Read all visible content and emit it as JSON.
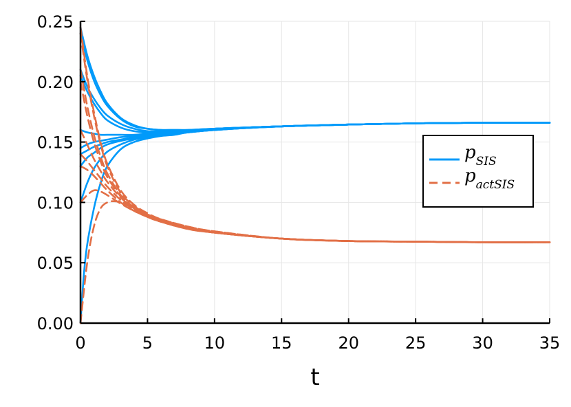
{
  "chart_data": {
    "type": "line",
    "title": "",
    "xlabel": "t",
    "ylabel": "",
    "xlim": [
      0,
      35
    ],
    "ylim": [
      0,
      0.25
    ],
    "grid": true,
    "legend_position": "right",
    "x_ticks": [
      "0",
      "5",
      "10",
      "15",
      "20",
      "25",
      "30",
      "35"
    ],
    "y_ticks": [
      "0.00",
      "0.05",
      "0.10",
      "0.15",
      "0.20",
      "0.25"
    ],
    "colors": {
      "sis": "#009AFA",
      "actsis": "#E26F46"
    },
    "legend": [
      {
        "main": "p",
        "sub": "SIS",
        "style": "solid",
        "color": "#009AFA"
      },
      {
        "main": "p",
        "sub": "actSIS",
        "style": "dashed",
        "color": "#E26F46"
      }
    ],
    "series": [
      {
        "group": "sis",
        "x": [
          0,
          0.5,
          1,
          1.5,
          2,
          3,
          4,
          5,
          6,
          7,
          8,
          10,
          15,
          20,
          25,
          30,
          35
        ],
        "values": [
          0.245,
          0.222,
          0.205,
          0.192,
          0.182,
          0.17,
          0.164,
          0.161,
          0.16,
          0.16,
          0.16,
          0.161,
          0.163,
          0.1645,
          0.1655,
          0.166,
          0.166
        ]
      },
      {
        "group": "sis",
        "x": [
          0,
          0.5,
          1,
          1.5,
          2,
          3,
          4,
          5,
          6,
          7,
          8,
          10,
          15,
          20,
          25,
          30,
          35
        ],
        "values": [
          0.24,
          0.218,
          0.201,
          0.189,
          0.18,
          0.169,
          0.163,
          0.161,
          0.16,
          0.16,
          0.16,
          0.161,
          0.163,
          0.1645,
          0.1655,
          0.166,
          0.166
        ]
      },
      {
        "group": "sis",
        "x": [
          0,
          0.5,
          1,
          1.5,
          2,
          3,
          4,
          5,
          6,
          7,
          8,
          10,
          15,
          20,
          25,
          30,
          35
        ],
        "values": [
          0.21,
          0.196,
          0.186,
          0.178,
          0.172,
          0.165,
          0.161,
          0.159,
          0.159,
          0.159,
          0.159,
          0.161,
          0.163,
          0.1645,
          0.1655,
          0.166,
          0.166
        ]
      },
      {
        "group": "sis",
        "x": [
          0,
          0.5,
          1,
          1.5,
          2,
          3,
          4,
          5,
          6,
          7,
          8,
          10,
          15,
          20,
          25,
          30,
          35
        ],
        "values": [
          0.205,
          0.192,
          0.182,
          0.174,
          0.168,
          0.162,
          0.159,
          0.158,
          0.158,
          0.158,
          0.159,
          0.161,
          0.163,
          0.1645,
          0.1655,
          0.166,
          0.166
        ]
      },
      {
        "group": "sis",
        "x": [
          0,
          0.5,
          1,
          1.5,
          2,
          3,
          4,
          5,
          6,
          7,
          8,
          10,
          15,
          20,
          25,
          30,
          35
        ],
        "values": [
          0.16,
          0.158,
          0.157,
          0.156,
          0.156,
          0.156,
          0.156,
          0.157,
          0.157,
          0.158,
          0.159,
          0.161,
          0.163,
          0.1645,
          0.1655,
          0.166,
          0.166
        ]
      },
      {
        "group": "sis",
        "x": [
          0,
          0.5,
          1,
          1.5,
          2,
          3,
          4,
          5,
          6,
          7,
          8,
          10,
          15,
          20,
          25,
          30,
          35
        ],
        "values": [
          0.145,
          0.148,
          0.15,
          0.151,
          0.152,
          0.154,
          0.155,
          0.156,
          0.157,
          0.158,
          0.159,
          0.161,
          0.163,
          0.1645,
          0.1655,
          0.166,
          0.166
        ]
      },
      {
        "group": "sis",
        "x": [
          0,
          0.5,
          1,
          1.5,
          2,
          3,
          4,
          5,
          6,
          7,
          8,
          10,
          15,
          20,
          25,
          30,
          35
        ],
        "values": [
          0.14,
          0.143,
          0.146,
          0.148,
          0.15,
          0.152,
          0.154,
          0.156,
          0.157,
          0.158,
          0.159,
          0.161,
          0.163,
          0.1645,
          0.1655,
          0.166,
          0.166
        ]
      },
      {
        "group": "sis",
        "x": [
          0,
          0.5,
          1,
          1.5,
          2,
          3,
          4,
          5,
          6,
          7,
          8,
          10,
          15,
          20,
          25,
          30,
          35
        ],
        "values": [
          0.13,
          0.137,
          0.141,
          0.145,
          0.148,
          0.151,
          0.153,
          0.155,
          0.156,
          0.157,
          0.158,
          0.16,
          0.163,
          0.1645,
          0.1655,
          0.166,
          0.166
        ]
      },
      {
        "group": "sis",
        "x": [
          0,
          0.5,
          1,
          1.5,
          2,
          3,
          4,
          5,
          6,
          7,
          8,
          10,
          15,
          20,
          25,
          30,
          35
        ],
        "values": [
          0.1,
          0.116,
          0.128,
          0.136,
          0.142,
          0.148,
          0.152,
          0.154,
          0.156,
          0.157,
          0.158,
          0.16,
          0.163,
          0.1645,
          0.1655,
          0.166,
          0.166
        ]
      },
      {
        "group": "sis",
        "x": [
          0,
          0.25,
          0.5,
          1,
          1.5,
          2,
          3,
          4,
          5,
          6,
          7,
          8,
          10,
          15,
          20,
          25,
          30,
          35
        ],
        "values": [
          0.0,
          0.04,
          0.065,
          0.095,
          0.116,
          0.13,
          0.144,
          0.15,
          0.153,
          0.155,
          0.156,
          0.158,
          0.16,
          0.163,
          0.1645,
          0.1655,
          0.166,
          0.166
        ]
      },
      {
        "group": "actsis",
        "x": [
          0,
          0.5,
          1,
          1.5,
          2,
          3,
          4,
          5,
          6,
          8,
          10,
          15,
          20,
          25,
          30,
          35
        ],
        "values": [
          0.245,
          0.205,
          0.175,
          0.15,
          0.132,
          0.11,
          0.098,
          0.091,
          0.086,
          0.079,
          0.075,
          0.07,
          0.068,
          0.0675,
          0.067,
          0.067
        ]
      },
      {
        "group": "actsis",
        "x": [
          0,
          0.5,
          1,
          1.5,
          2,
          3,
          4,
          5,
          6,
          8,
          10,
          15,
          20,
          25,
          30,
          35
        ],
        "values": [
          0.24,
          0.202,
          0.172,
          0.148,
          0.13,
          0.108,
          0.097,
          0.09,
          0.085,
          0.079,
          0.075,
          0.07,
          0.068,
          0.0675,
          0.067,
          0.067
        ]
      },
      {
        "group": "actsis",
        "x": [
          0,
          0.5,
          1,
          1.5,
          2,
          3,
          4,
          5,
          6,
          8,
          10,
          15,
          20,
          25,
          30,
          35
        ],
        "values": [
          0.21,
          0.18,
          0.156,
          0.138,
          0.124,
          0.106,
          0.096,
          0.09,
          0.086,
          0.08,
          0.076,
          0.07,
          0.068,
          0.0675,
          0.067,
          0.067
        ]
      },
      {
        "group": "actsis",
        "x": [
          0,
          0.5,
          1,
          1.5,
          2,
          3,
          4,
          5,
          6,
          8,
          10,
          15,
          20,
          25,
          30,
          35
        ],
        "values": [
          0.2,
          0.172,
          0.15,
          0.134,
          0.121,
          0.105,
          0.095,
          0.089,
          0.085,
          0.079,
          0.075,
          0.07,
          0.068,
          0.0675,
          0.067,
          0.067
        ]
      },
      {
        "group": "actsis",
        "x": [
          0,
          0.5,
          1,
          1.5,
          2,
          3,
          4,
          5,
          6,
          8,
          10,
          15,
          20,
          25,
          30,
          35
        ],
        "values": [
          0.16,
          0.148,
          0.136,
          0.126,
          0.117,
          0.104,
          0.095,
          0.089,
          0.085,
          0.079,
          0.075,
          0.07,
          0.068,
          0.0675,
          0.067,
          0.067
        ]
      },
      {
        "group": "actsis",
        "x": [
          0,
          0.5,
          1,
          1.5,
          2,
          3,
          4,
          5,
          6,
          8,
          10,
          15,
          20,
          25,
          30,
          35
        ],
        "values": [
          0.14,
          0.134,
          0.127,
          0.12,
          0.113,
          0.102,
          0.094,
          0.088,
          0.084,
          0.079,
          0.075,
          0.07,
          0.068,
          0.0675,
          0.067,
          0.067
        ]
      },
      {
        "group": "actsis",
        "x": [
          0,
          0.5,
          1,
          1.5,
          2,
          3,
          4,
          5,
          6,
          8,
          10,
          15,
          20,
          25,
          30,
          35
        ],
        "values": [
          0.13,
          0.127,
          0.122,
          0.116,
          0.11,
          0.1,
          0.093,
          0.088,
          0.084,
          0.078,
          0.075,
          0.07,
          0.068,
          0.0675,
          0.067,
          0.067
        ]
      },
      {
        "group": "actsis",
        "x": [
          0,
          0.5,
          1,
          1.5,
          2,
          3,
          4,
          5,
          6,
          8,
          10,
          15,
          20,
          25,
          30,
          35
        ],
        "values": [
          0.1,
          0.106,
          0.11,
          0.109,
          0.106,
          0.099,
          0.093,
          0.088,
          0.084,
          0.078,
          0.075,
          0.07,
          0.068,
          0.0675,
          0.067,
          0.067
        ]
      },
      {
        "group": "actsis",
        "x": [
          0,
          0.5,
          1,
          1.5,
          2,
          2.5,
          3,
          4,
          5,
          6,
          8,
          10,
          15,
          20,
          25,
          30,
          35
        ],
        "values": [
          0.0,
          0.05,
          0.08,
          0.095,
          0.1,
          0.101,
          0.1,
          0.095,
          0.09,
          0.086,
          0.08,
          0.076,
          0.07,
          0.068,
          0.0675,
          0.067,
          0.067
        ]
      }
    ]
  }
}
